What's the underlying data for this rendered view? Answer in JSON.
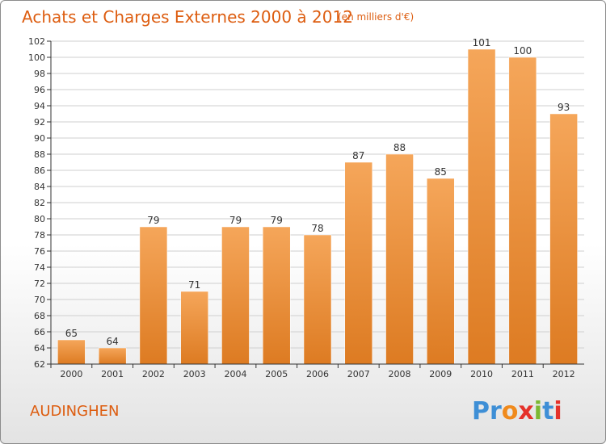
{
  "colors": {
    "title": "#dd5d10",
    "bar_light": "#f5a65a",
    "bar_dark": "#dd7b22",
    "grid": "#cfcfcf",
    "axis": "#333333"
  },
  "chart_data": {
    "type": "bar",
    "title": "Achats et Charges Externes 2000 à 2012",
    "subtitle": "(en milliers d'€)",
    "categories": [
      "2000",
      "2001",
      "2002",
      "2003",
      "2004",
      "2005",
      "2006",
      "2007",
      "2008",
      "2009",
      "2010",
      "2011",
      "2012"
    ],
    "values": [
      65,
      64,
      79,
      71,
      79,
      79,
      78,
      87,
      88,
      85,
      101,
      100,
      93
    ],
    "ylim": [
      62,
      102
    ],
    "ytick_step": 2,
    "grid": true,
    "data_labels": true,
    "xlabel": "",
    "ylabel": ""
  },
  "commune": "AUDINGHEN",
  "logo": {
    "letters": [
      "P",
      "r",
      "o",
      "x",
      "i",
      "t",
      "i"
    ],
    "colors": [
      "#3e8fd6",
      "#3e8fd6",
      "#f08a1c",
      "#e5322b",
      "#7cb832",
      "#3e8fd6",
      "#e5322b"
    ]
  }
}
